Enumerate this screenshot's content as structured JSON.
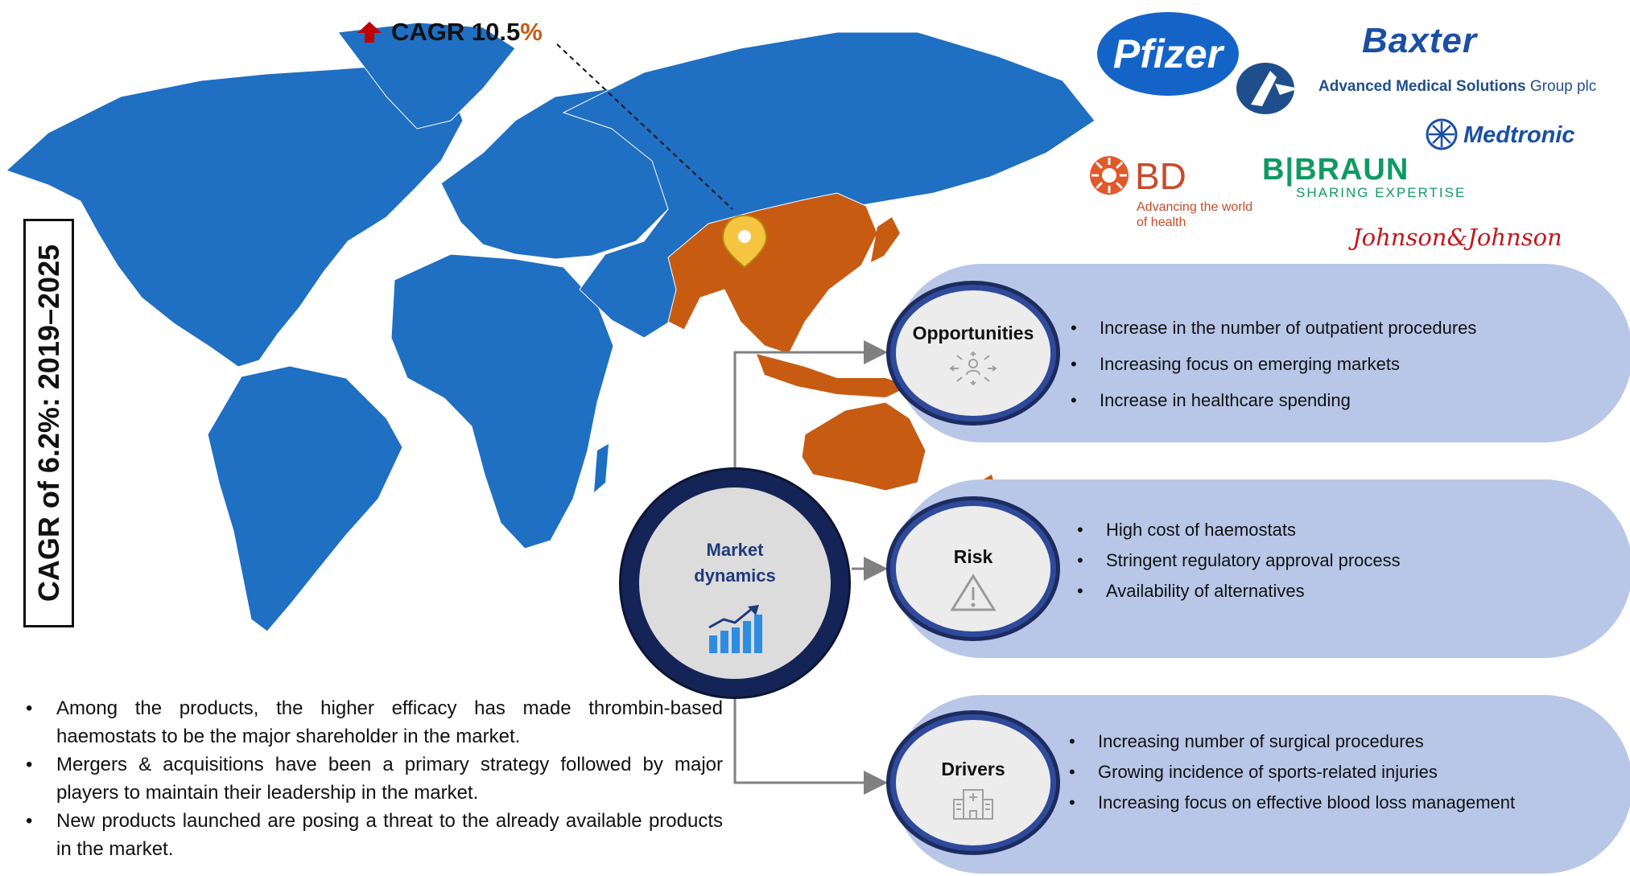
{
  "cagr_overall": "CAGR of 6.2%: 2019–2025",
  "cagr_region": {
    "label": "CAGR 10.5",
    "percent_sign": "%"
  },
  "logos": {
    "pfizer": "Pfizer",
    "baxter": "Baxter",
    "ams_name": "Advanced Medical Solutions",
    "ams_suffix": "Group plc",
    "medtronic": "Medtronic",
    "bd": "BD",
    "bd_tagline": "Advancing the world of health",
    "bbraun": "B|BRAUN",
    "bbraun_tagline": "SHARING EXPERTISE",
    "jnj": "Johnson&Johnson"
  },
  "center": {
    "line1": "Market",
    "line2": "dynamics"
  },
  "opportunities": {
    "title": "Opportunities",
    "items": [
      "Increase in the number of outpatient procedures",
      "Increasing focus on emerging markets",
      "Increase in healthcare spending"
    ]
  },
  "risk": {
    "title": "Risk",
    "items": [
      "High cost of haemostats",
      "Stringent regulatory approval process",
      "Availability of alternatives"
    ]
  },
  "drivers": {
    "title": "Drivers",
    "items": [
      "Increasing number of surgical procedures",
      "Growing incidence of sports-related injuries",
      "Increasing focus on effective blood loss management"
    ]
  },
  "summary": [
    "Among the products, the higher efficacy has made thrombin-based haemostats to be the major shareholder in the market.",
    "Mergers & acquisitions have been a primary strategy followed by major players to maintain their leadership in the market.",
    "New products launched are posing a threat to the already available products in the market."
  ],
  "colors": {
    "map_blue": "#1f6fc2",
    "map_highlight": "#c75b12",
    "pill": "#b8c7e8",
    "circle_ring": "#2f4a9b",
    "center_ring": "#152456"
  }
}
